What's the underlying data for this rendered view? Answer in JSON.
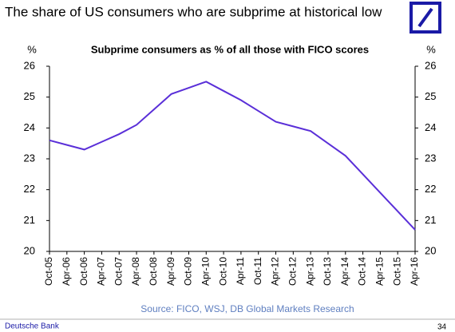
{
  "chart_data": {
    "type": "line",
    "page_title": "The share of US consumers who are subprime at historical low",
    "title": "Subprime consumers as % of all those with FICO scores",
    "y_label": "%",
    "y2_label": "%",
    "categories": [
      "Oct-05",
      "Apr-06",
      "Oct-06",
      "Apr-07",
      "Oct-07",
      "Apr-08",
      "Oct-08",
      "Apr-09",
      "Oct-09",
      "Apr-10",
      "Oct-10",
      "Apr-11",
      "Oct-11",
      "Apr-12",
      "Oct-12",
      "Apr-13",
      "Oct-13",
      "Apr-14",
      "Oct-14",
      "Apr-15",
      "Oct-15",
      "Apr-16"
    ],
    "series": [
      {
        "name": "Subprime consumers",
        "color": "#5a2fd8",
        "values": [
          23.6,
          23.45,
          23.3,
          23.55,
          23.8,
          24.1,
          24.6,
          25.1,
          25.3,
          25.5,
          25.2,
          24.9,
          24.55,
          24.2,
          24.05,
          23.9,
          23.5,
          23.1,
          22.5,
          21.9,
          21.3,
          20.7
        ]
      }
    ],
    "ylim": [
      20,
      26
    ],
    "yticks": [
      20,
      21,
      22,
      23,
      24,
      25,
      26
    ],
    "y2lim": [
      20,
      26
    ],
    "y2ticks": [
      20,
      21,
      22,
      23,
      24,
      25,
      26
    ],
    "source": "Source: FICO, WSJ, DB Global Markets Research",
    "footer": "Deutsche Bank",
    "page_number": "34"
  }
}
